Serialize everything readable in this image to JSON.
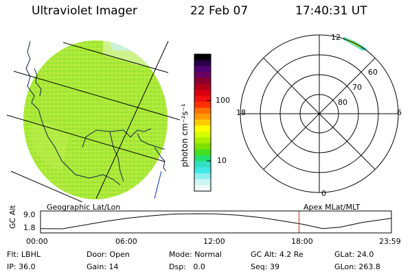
{
  "header": {
    "instrument": "Ultraviolet Imager",
    "date": "22 Feb 07",
    "time": "17:40:31 UT"
  },
  "colorbar": {
    "unit_label": "photon cm⁻²s⁻¹",
    "ticks": [
      "100",
      "10"
    ],
    "colors": [
      "#000000",
      "#2a0048",
      "#500070",
      "#6a0060",
      "#8a0030",
      "#b00018",
      "#d80010",
      "#f01010",
      "#ff3000",
      "#ff7000",
      "#ff9a00",
      "#ffcc00",
      "#ffff00",
      "#d6ff00",
      "#a8f000",
      "#7ee000",
      "#44e020",
      "#22e070",
      "#30e0c0",
      "#40e8e8",
      "#90f0f0",
      "#ccf6f6",
      "#f0f8f8"
    ]
  },
  "left_panel": {
    "label": "Geographic Lat/Lon",
    "disk_color": "#a6e838"
  },
  "polar_plot": {
    "label": "Apex MLat/MLT",
    "mlt_labels": {
      "top": "12",
      "left": "18",
      "right": "6",
      "bottom": "0"
    },
    "lat_labels": [
      "60",
      "70",
      "80"
    ],
    "aurora_color": "#40d8c0"
  },
  "timeline": {
    "ylabel": "GC Alt",
    "yticks": [
      "9.0",
      "1.8"
    ],
    "xticks": [
      "00:00",
      "06:00",
      "12:00",
      "18:00",
      "23:59"
    ],
    "chart_data": {
      "type": "line",
      "title": "",
      "xlabel": "",
      "ylabel": "GC Alt",
      "ylim": [
        1.8,
        9.0
      ],
      "x_hours": [
        0,
        1.5,
        3,
        4.5,
        6,
        7.5,
        9,
        10.5,
        12,
        13.5,
        15,
        16.5,
        18,
        19.3,
        20.5,
        22,
        23.98
      ],
      "y": [
        1.9,
        1.8,
        3.6,
        5.4,
        6.9,
        8.0,
        8.8,
        9.0,
        8.9,
        8.3,
        7.2,
        5.6,
        3.9,
        1.9,
        2.6,
        4.8,
        6.8
      ],
      "current_time_hours": 17.68,
      "current_marker_color": "#cc2222"
    }
  },
  "info": {
    "row1": [
      {
        "label": "Flt:",
        "value": "LBHL"
      },
      {
        "label": "Door:",
        "value": "Open"
      },
      {
        "label": "Mode:",
        "value": "Normal"
      },
      {
        "label": "GC Alt:",
        "value": "4.2 Re"
      },
      {
        "label": "GLat:",
        "value": "24.0"
      }
    ],
    "row2": [
      {
        "label": "IP:",
        "value": "36.0"
      },
      {
        "label": "Gain:",
        "value": "14"
      },
      {
        "label": "Dsp:",
        "value": "0.0"
      },
      {
        "label": "Seq:",
        "value": "39"
      },
      {
        "label": "GLon:",
        "value": "263.8"
      }
    ]
  }
}
